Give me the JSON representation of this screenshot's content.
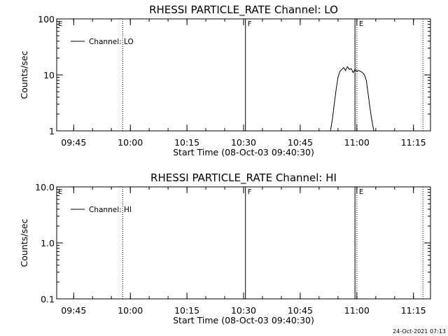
{
  "chart_data": [
    {
      "type": "line",
      "title": "RHESSI PARTICLE_RATE Channel: LO",
      "xlabel": "Start Time (08-Oct-03 09:40:30)",
      "ylabel": "Counts/sec",
      "yscale": "log",
      "ylim": [
        1,
        100
      ],
      "yticks": [
        "1",
        "10",
        "100"
      ],
      "xlim": [
        "09:40:30",
        "11:19:30"
      ],
      "xticks": [
        "09:45",
        "10:00",
        "10:15",
        "10:30",
        "10:45",
        "11:00",
        "11:15"
      ],
      "legend": {
        "label": "Channel: LO",
        "position": "top-left"
      },
      "series": [
        {
          "name": "Channel: LO",
          "x": [
            "10:53:00",
            "10:53:30",
            "10:54:00",
            "10:54:30",
            "10:55:00",
            "10:55:30",
            "10:56:00",
            "10:56:30",
            "10:57:00",
            "10:57:30",
            "10:58:00",
            "10:58:30",
            "10:59:00",
            "10:59:30",
            "11:00:00",
            "11:00:30",
            "11:01:00",
            "11:01:30",
            "11:02:00",
            "11:02:30",
            "11:03:00",
            "11:03:30",
            "11:04:00",
            "11:04:30"
          ],
          "y": [
            1.0,
            1.6,
            3.0,
            5.5,
            9.0,
            11.5,
            12.5,
            13.5,
            12.0,
            14.0,
            12.5,
            13.0,
            11.0,
            12.5,
            11.5,
            12.0,
            11.5,
            11.0,
            10.0,
            8.0,
            4.5,
            2.5,
            1.5,
            1.0
          ]
        }
      ],
      "markers": [
        {
          "time": "09:58:00",
          "style": "dotted",
          "label": ""
        },
        {
          "time": "10:30:30",
          "style": "solid",
          "label": "F"
        },
        {
          "time": "10:59:30",
          "style": "solid",
          "label": ""
        },
        {
          "time": "11:00:00",
          "style": "dotted",
          "label": "E"
        },
        {
          "time": "11:17:30",
          "style": "dotted",
          "label": ""
        }
      ],
      "corner_label": "E"
    },
    {
      "type": "line",
      "title": "RHESSI PARTICLE_RATE Channel: HI",
      "xlabel": "Start Time (08-Oct-03 09:40:30)",
      "ylabel": "Counts/sec",
      "yscale": "log",
      "ylim": [
        0.1,
        10
      ],
      "yticks": [
        "0.1",
        "1.0",
        "10.0"
      ],
      "xlim": [
        "09:40:30",
        "11:19:30"
      ],
      "xticks": [
        "09:45",
        "10:00",
        "10:15",
        "10:30",
        "10:45",
        "11:00",
        "11:15"
      ],
      "legend": {
        "label": "Channel: HI",
        "position": "top-left"
      },
      "series": [
        {
          "name": "Channel: HI",
          "x": [],
          "y": []
        }
      ],
      "markers": [
        {
          "time": "09:58:00",
          "style": "dotted",
          "label": ""
        },
        {
          "time": "10:30:30",
          "style": "solid",
          "label": "F"
        },
        {
          "time": "10:59:30",
          "style": "solid",
          "label": ""
        },
        {
          "time": "11:00:00",
          "style": "dotted",
          "label": "E"
        },
        {
          "time": "11:17:30",
          "style": "dotted",
          "label": ""
        }
      ],
      "corner_label": "E"
    }
  ],
  "timestamp": "24-Oct-2021 07:13"
}
